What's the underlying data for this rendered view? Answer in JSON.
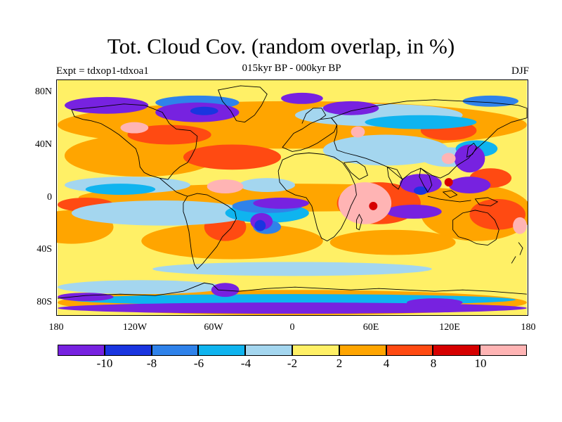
{
  "header": {
    "title": "Tot. Cloud Cov. (random overlap, in %)",
    "subtitle": "015kyr BP - 000kyr BP",
    "left_string": "Expt = tdxop1-tdxoa1",
    "right_string": "DJF"
  },
  "map": {
    "projection": "cylindrical equidistant",
    "field": "difference in total cloud cover",
    "background_class_color": "#fff066",
    "lat_labels": [
      "80N",
      "40N",
      "0",
      "40S",
      "80S"
    ],
    "lon_labels": [
      "180",
      "120W",
      "60W",
      "0",
      "60E",
      "120E",
      "180"
    ]
  },
  "colorbar": {
    "levels": [
      "-10",
      "-8",
      "-6",
      "-4",
      "-2",
      "2",
      "4",
      "8",
      "10"
    ],
    "colors": [
      "#7722e0",
      "#1a35e0",
      "#2f82ea",
      "#0fb4ef",
      "#a4d6ef",
      "#fff066",
      "#ffa500",
      "#ff4a12",
      "#d60000",
      "#ffb4b4"
    ]
  }
}
